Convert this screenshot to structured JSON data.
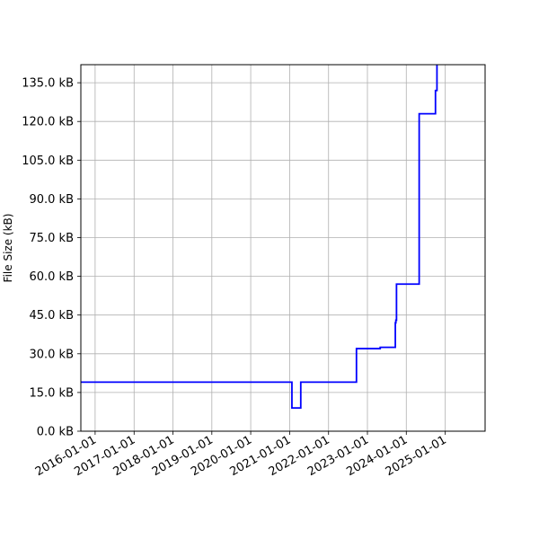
{
  "chart_data": {
    "type": "line",
    "title": "",
    "xlabel": "",
    "ylabel": "File Size (kB)",
    "grid": true,
    "x_ticks": [
      "2016-01-01",
      "2017-01-01",
      "2018-01-01",
      "2019-01-01",
      "2020-01-01",
      "2021-01-01",
      "2022-01-01",
      "2023-01-01",
      "2024-01-01",
      "2025-01-01"
    ],
    "y_ticks": [
      0,
      15,
      30,
      45,
      60,
      75,
      90,
      105,
      120,
      135
    ],
    "y_tick_labels": [
      "0.0 kB",
      "15.0 kB",
      "30.0 kB",
      "45.0 kB",
      "60.0 kB",
      "75.0 kB",
      "90.0 kB",
      "105.0 kB",
      "120.0 kB",
      "135.0 kB"
    ],
    "xlim": [
      "2015-08-20",
      "2026-01-10"
    ],
    "ylim": [
      0,
      142
    ],
    "series": [
      {
        "color": "#0000ff",
        "step": true,
        "x": [
          "2015-08-20",
          "2021-01-20",
          "2021-01-22",
          "2021-04-10",
          "2021-04-15",
          "2021-04-25",
          "2022-09-20",
          "2023-05-01",
          "2023-09-20",
          "2023-09-25",
          "2023-10-01",
          "2024-05-01",
          "2024-09-20",
          "2024-10-01",
          "2024-10-15"
        ],
        "y": [
          19,
          19,
          9,
          9,
          19,
          19,
          32,
          32.5,
          42,
          43,
          57,
          123,
          123,
          132,
          142
        ]
      }
    ]
  }
}
